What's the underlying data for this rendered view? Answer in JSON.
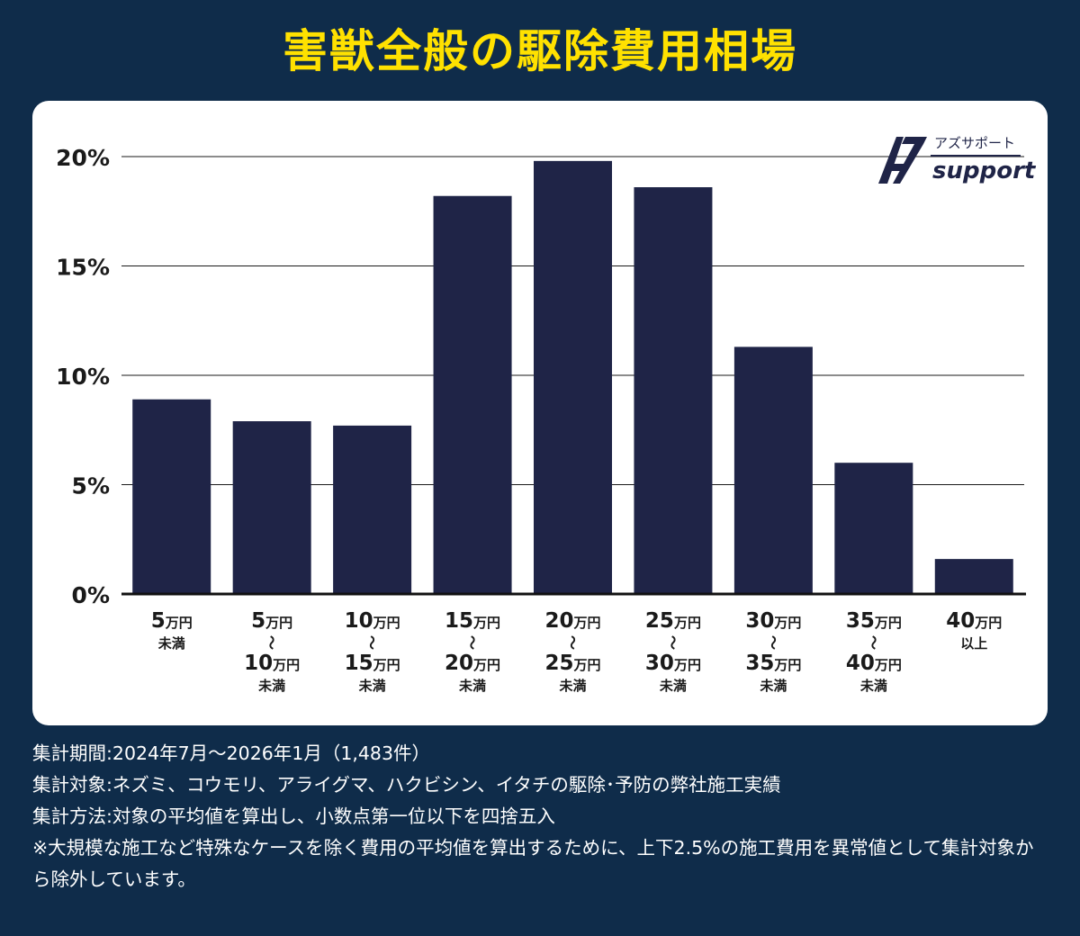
{
  "title": "害獣全般の駆除費用相場",
  "logo": {
    "kana": "アズサポート",
    "word": "support",
    "mark": "AZ"
  },
  "chart_data": {
    "type": "bar",
    "title": "害獣全般の駆除費用相場",
    "ylim": [
      0,
      20
    ],
    "yticks": [
      0,
      5,
      10,
      15,
      20
    ],
    "ytick_labels": [
      "0%",
      "5%",
      "10%",
      "15%",
      "20%"
    ],
    "grid": true,
    "bar_color": "#1f2447",
    "categories": [
      {
        "lines": [
          [
            "5",
            "万円"
          ],
          [
            "未満",
            ""
          ]
        ]
      },
      {
        "lines": [
          [
            "5",
            "万円"
          ],
          [
            "〜",
            ""
          ],
          [
            "10",
            "万円"
          ],
          [
            "未満",
            ""
          ]
        ]
      },
      {
        "lines": [
          [
            "10",
            "万円"
          ],
          [
            "〜",
            ""
          ],
          [
            "15",
            "万円"
          ],
          [
            "未満",
            ""
          ]
        ]
      },
      {
        "lines": [
          [
            "15",
            "万円"
          ],
          [
            "〜",
            ""
          ],
          [
            "20",
            "万円"
          ],
          [
            "未満",
            ""
          ]
        ]
      },
      {
        "lines": [
          [
            "20",
            "万円"
          ],
          [
            "〜",
            ""
          ],
          [
            "25",
            "万円"
          ],
          [
            "未満",
            ""
          ]
        ]
      },
      {
        "lines": [
          [
            "25",
            "万円"
          ],
          [
            "〜",
            ""
          ],
          [
            "30",
            "万円"
          ],
          [
            "未満",
            ""
          ]
        ]
      },
      {
        "lines": [
          [
            "30",
            "万円"
          ],
          [
            "〜",
            ""
          ],
          [
            "35",
            "万円"
          ],
          [
            "未満",
            ""
          ]
        ]
      },
      {
        "lines": [
          [
            "35",
            "万円"
          ],
          [
            "〜",
            ""
          ],
          [
            "40",
            "万円"
          ],
          [
            "未満",
            ""
          ]
        ]
      },
      {
        "lines": [
          [
            "40",
            "万円"
          ],
          [
            "以上",
            ""
          ]
        ]
      }
    ],
    "values": [
      8.9,
      7.9,
      7.7,
      18.2,
      19.8,
      18.6,
      11.3,
      6.0,
      1.6
    ]
  },
  "notes": [
    "集計期間:2024年7月〜2026年1月（1,483件）",
    "集計対象:ネズミ、コウモリ、アライグマ、ハクビシン、イタチの駆除･予防の弊社施工実績",
    "集計方法:対象の平均値を算出し、小数点第一位以下を四捨五入",
    "※大規模な施工など特殊なケースを除く費用の平均値を算出するために、上下2.5%の施工費用を異常値として集計対象から除外しています。"
  ],
  "colors": {
    "background": "#0f2c4a",
    "accent": "#ffe100",
    "bar": "#1f2447"
  }
}
